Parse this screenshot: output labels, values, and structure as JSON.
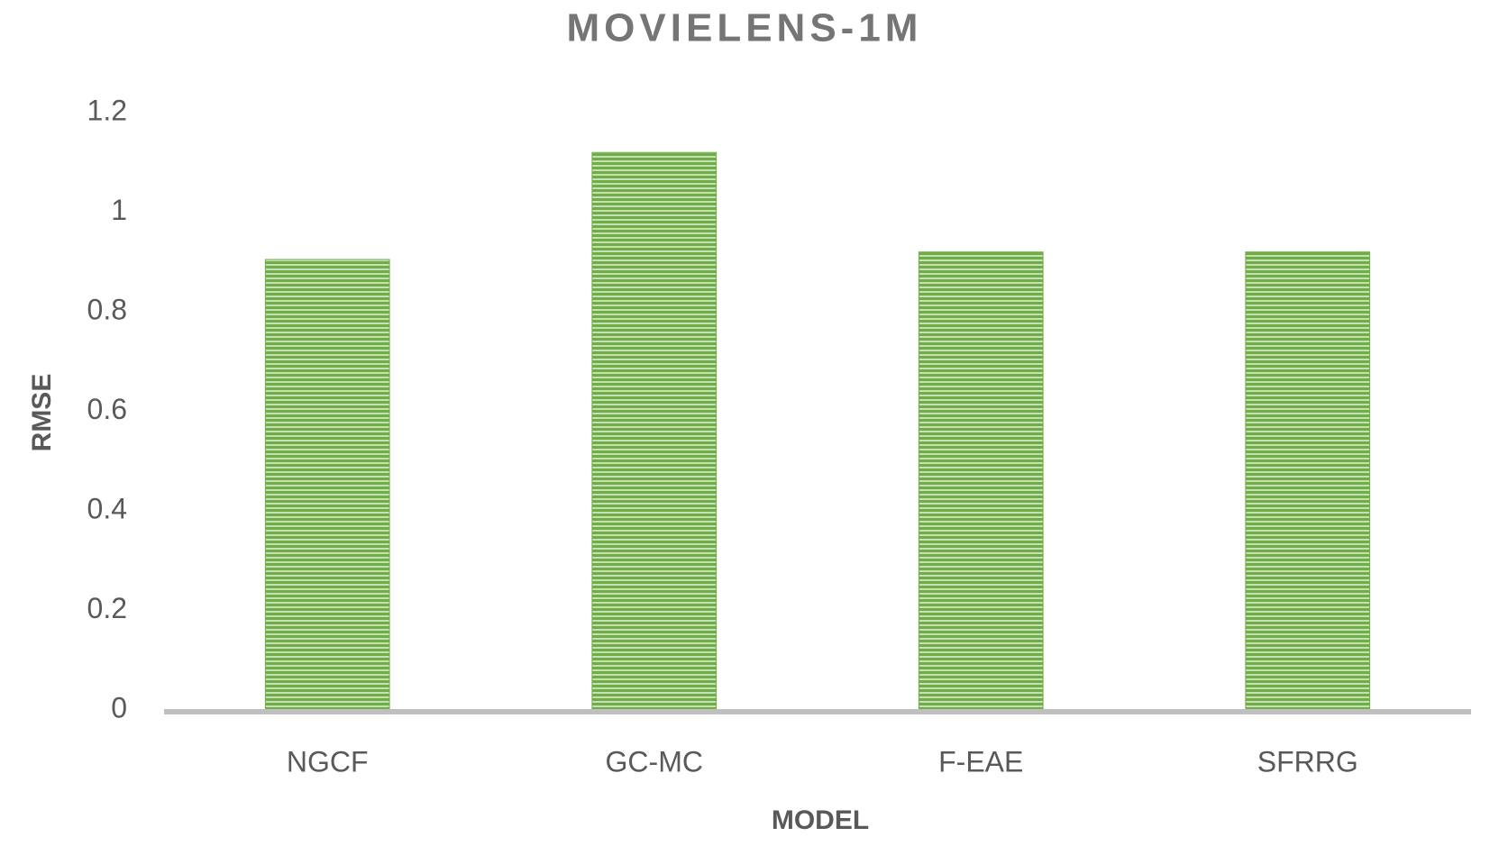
{
  "chart_data": {
    "type": "bar",
    "title": "MOVIELENS-1M",
    "x_label": "MODEL",
    "y_label": "RMSE",
    "categories": [
      "NGCF",
      "GC-MC",
      "F-EAE",
      "SFRRG"
    ],
    "values": [
      0.905,
      1.12,
      0.92,
      0.92
    ],
    "color": "#70ad47",
    "ylim": [
      0,
      1.2
    ],
    "yticks": [
      0,
      0.2,
      0.4,
      0.6,
      0.8,
      1,
      1.2
    ],
    "grid": false
  }
}
